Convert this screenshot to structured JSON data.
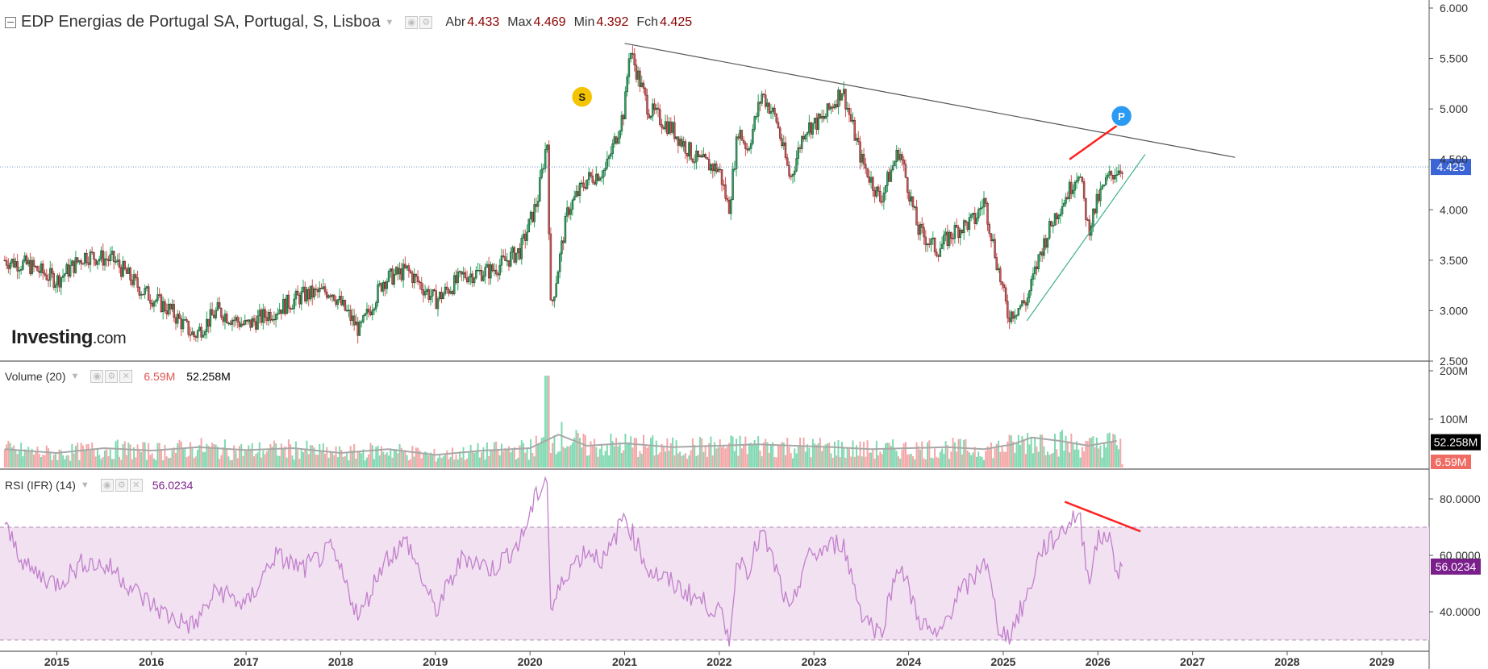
{
  "header": {
    "title": "EDP Energias de Portugal SA, Portugal, S, Lisboa",
    "open_label": "Abr",
    "open_value": "4.433",
    "high_label": "Max",
    "high_value": "4.469",
    "low_label": "Min",
    "low_value": "4.392",
    "close_label": "Fch",
    "close_value": "4.425"
  },
  "logo": {
    "brand": "Investing",
    "suffix": ".com"
  },
  "volume_panel": {
    "label": "Volume (20)",
    "current": "6.59M",
    "average": "52.258M"
  },
  "rsi_panel": {
    "label": "RSI (IFR) (14)",
    "current": "56.0234"
  },
  "colors": {
    "up": "#26a65b",
    "down": "#d94f4f",
    "vol_up": "#7fd9b1",
    "vol_down": "#f3a7a7",
    "rsi_line": "#c27fcc",
    "rsi_band": "#f1e1f1",
    "price_tag": "#3b64d6",
    "rsi_tag": "#7b1f8c",
    "trend_red": "#ff2020"
  },
  "chart_data": [
    {
      "type": "candlestick",
      "title": "EDP Energias de Portugal SA, Portugal, S, Lisboa",
      "y_axis_ticks": [
        "6.000",
        "5.500",
        "5.000",
        "4.500",
        "4.000",
        "3.500",
        "3.000",
        "2.500"
      ],
      "ylim": [
        2.5,
        6.0
      ],
      "x_axis_ticks": [
        "2015",
        "2016",
        "2017",
        "2018",
        "2019",
        "2020",
        "2021",
        "2022",
        "2023",
        "2024",
        "2025",
        "2026",
        "2027",
        "2028",
        "2029"
      ],
      "last_price_label": "4.425",
      "markers": [
        {
          "label": "S",
          "date": "2020.55",
          "price": 5.12
        },
        {
          "label": "P",
          "date": "2026.25",
          "price": 4.93
        }
      ],
      "close_series": {
        "x": [
          2014.45,
          2014.7,
          2015.0,
          2015.3,
          2015.6,
          2015.9,
          2016.2,
          2016.45,
          2016.7,
          2017.0,
          2017.3,
          2017.6,
          2017.9,
          2018.2,
          2018.45,
          2018.7,
          2019.0,
          2019.3,
          2019.6,
          2019.9,
          2020.08,
          2020.18,
          2020.22,
          2020.4,
          2020.6,
          2020.8,
          2021.0,
          2021.05,
          2021.25,
          2021.5,
          2021.75,
          2022.0,
          2022.1,
          2022.2,
          2022.3,
          2022.45,
          2022.6,
          2022.75,
          2022.9,
          2023.1,
          2023.3,
          2023.5,
          2023.7,
          2023.9,
          2024.1,
          2024.3,
          2024.5,
          2024.7,
          2024.8,
          2024.95,
          2025.05,
          2025.25,
          2025.4,
          2025.55,
          2025.7,
          2025.8,
          2025.9,
          2026.0,
          2026.1,
          2026.2,
          2026.26
        ],
        "y": [
          3.5,
          3.45,
          3.3,
          3.55,
          3.5,
          3.2,
          3.0,
          2.75,
          3.0,
          2.85,
          3.0,
          3.15,
          3.2,
          2.8,
          3.3,
          3.4,
          3.1,
          3.35,
          3.4,
          3.6,
          4.1,
          4.7,
          3.0,
          4.0,
          4.3,
          4.4,
          5.0,
          5.6,
          5.0,
          4.8,
          4.5,
          4.4,
          4.0,
          4.8,
          4.6,
          5.15,
          4.9,
          4.3,
          4.8,
          4.9,
          5.2,
          4.5,
          4.1,
          4.6,
          3.8,
          3.6,
          3.8,
          3.9,
          4.1,
          3.4,
          2.95,
          3.1,
          3.6,
          3.95,
          4.2,
          4.4,
          3.8,
          4.1,
          4.3,
          4.4,
          4.425
        ]
      },
      "trendlines": [
        {
          "name": "resistance",
          "from": {
            "x": 2021.0,
            "y": 5.65
          },
          "to": {
            "x": 2027.45,
            "y": 4.52
          }
        },
        {
          "name": "support",
          "from": {
            "x": 2025.25,
            "y": 2.9
          },
          "to": {
            "x": 2026.5,
            "y": 4.55
          }
        },
        {
          "name": "price-high-rise",
          "from": {
            "x": 2025.7,
            "y": 4.5
          },
          "to": {
            "x": 2026.3,
            "y": 4.9
          }
        }
      ]
    },
    {
      "type": "bar",
      "title": "Volume (20)",
      "y_axis_ticks": [
        "200M",
        "100M"
      ],
      "ylim": [
        0,
        200
      ],
      "average_label": "52.258M",
      "current_label": "6.59M",
      "peak": {
        "x": 2020.18,
        "value": 190
      },
      "average_series": {
        "x": [
          2014.45,
          2015.0,
          2015.5,
          2016.0,
          2016.5,
          2017.0,
          2017.5,
          2018.0,
          2018.5,
          2019.0,
          2019.5,
          2020.0,
          2020.3,
          2020.6,
          2021.0,
          2021.5,
          2022.0,
          2022.4,
          2022.8,
          2023.2,
          2023.6,
          2024.0,
          2024.4,
          2024.8,
          2025.1,
          2025.3,
          2025.6,
          2025.9,
          2026.2
        ],
        "y": [
          38,
          30,
          40,
          35,
          42,
          36,
          40,
          30,
          38,
          26,
          35,
          40,
          68,
          45,
          50,
          42,
          45,
          48,
          45,
          42,
          38,
          40,
          42,
          38,
          48,
          62,
          55,
          45,
          55
        ]
      }
    },
    {
      "type": "line",
      "title": "RSI (IFR) (14)",
      "y_axis_ticks": [
        "80.0000",
        "60.0000",
        "40.0000"
      ],
      "ylim": [
        26,
        90
      ],
      "band": [
        30,
        70
      ],
      "current_label": "56.0234",
      "series": {
        "x": [
          2014.45,
          2014.7,
          2015.0,
          2015.3,
          2015.6,
          2015.9,
          2016.2,
          2016.45,
          2016.7,
          2017.0,
          2017.3,
          2017.6,
          2017.9,
          2018.2,
          2018.45,
          2018.7,
          2019.0,
          2019.3,
          2019.6,
          2019.9,
          2020.08,
          2020.18,
          2020.22,
          2020.4,
          2020.6,
          2020.8,
          2021.0,
          2021.05,
          2021.25,
          2021.5,
          2021.75,
          2022.0,
          2022.1,
          2022.2,
          2022.3,
          2022.45,
          2022.6,
          2022.75,
          2022.9,
          2023.1,
          2023.3,
          2023.5,
          2023.7,
          2023.9,
          2024.1,
          2024.3,
          2024.5,
          2024.7,
          2024.8,
          2024.95,
          2025.05,
          2025.25,
          2025.4,
          2025.55,
          2025.7,
          2025.8,
          2025.9,
          2026.0,
          2026.1,
          2026.2,
          2026.26
        ],
        "y": [
          70,
          55,
          50,
          58,
          55,
          45,
          38,
          35,
          48,
          42,
          60,
          55,
          62,
          38,
          58,
          65,
          40,
          60,
          55,
          65,
          82,
          88,
          40,
          55,
          62,
          58,
          75,
          70,
          55,
          50,
          45,
          40,
          30,
          60,
          55,
          68,
          55,
          38,
          58,
          62,
          65,
          40,
          32,
          58,
          38,
          30,
          45,
          52,
          60,
          35,
          31,
          45,
          62,
          66,
          72,
          75,
          52,
          65,
          68,
          55,
          56.0234
        ]
      },
      "trendlines": [
        {
          "name": "rsi-divergence",
          "from": {
            "x": 2025.65,
            "y": 79
          },
          "to": {
            "x": 2026.45,
            "y": 68.5
          }
        }
      ]
    }
  ]
}
